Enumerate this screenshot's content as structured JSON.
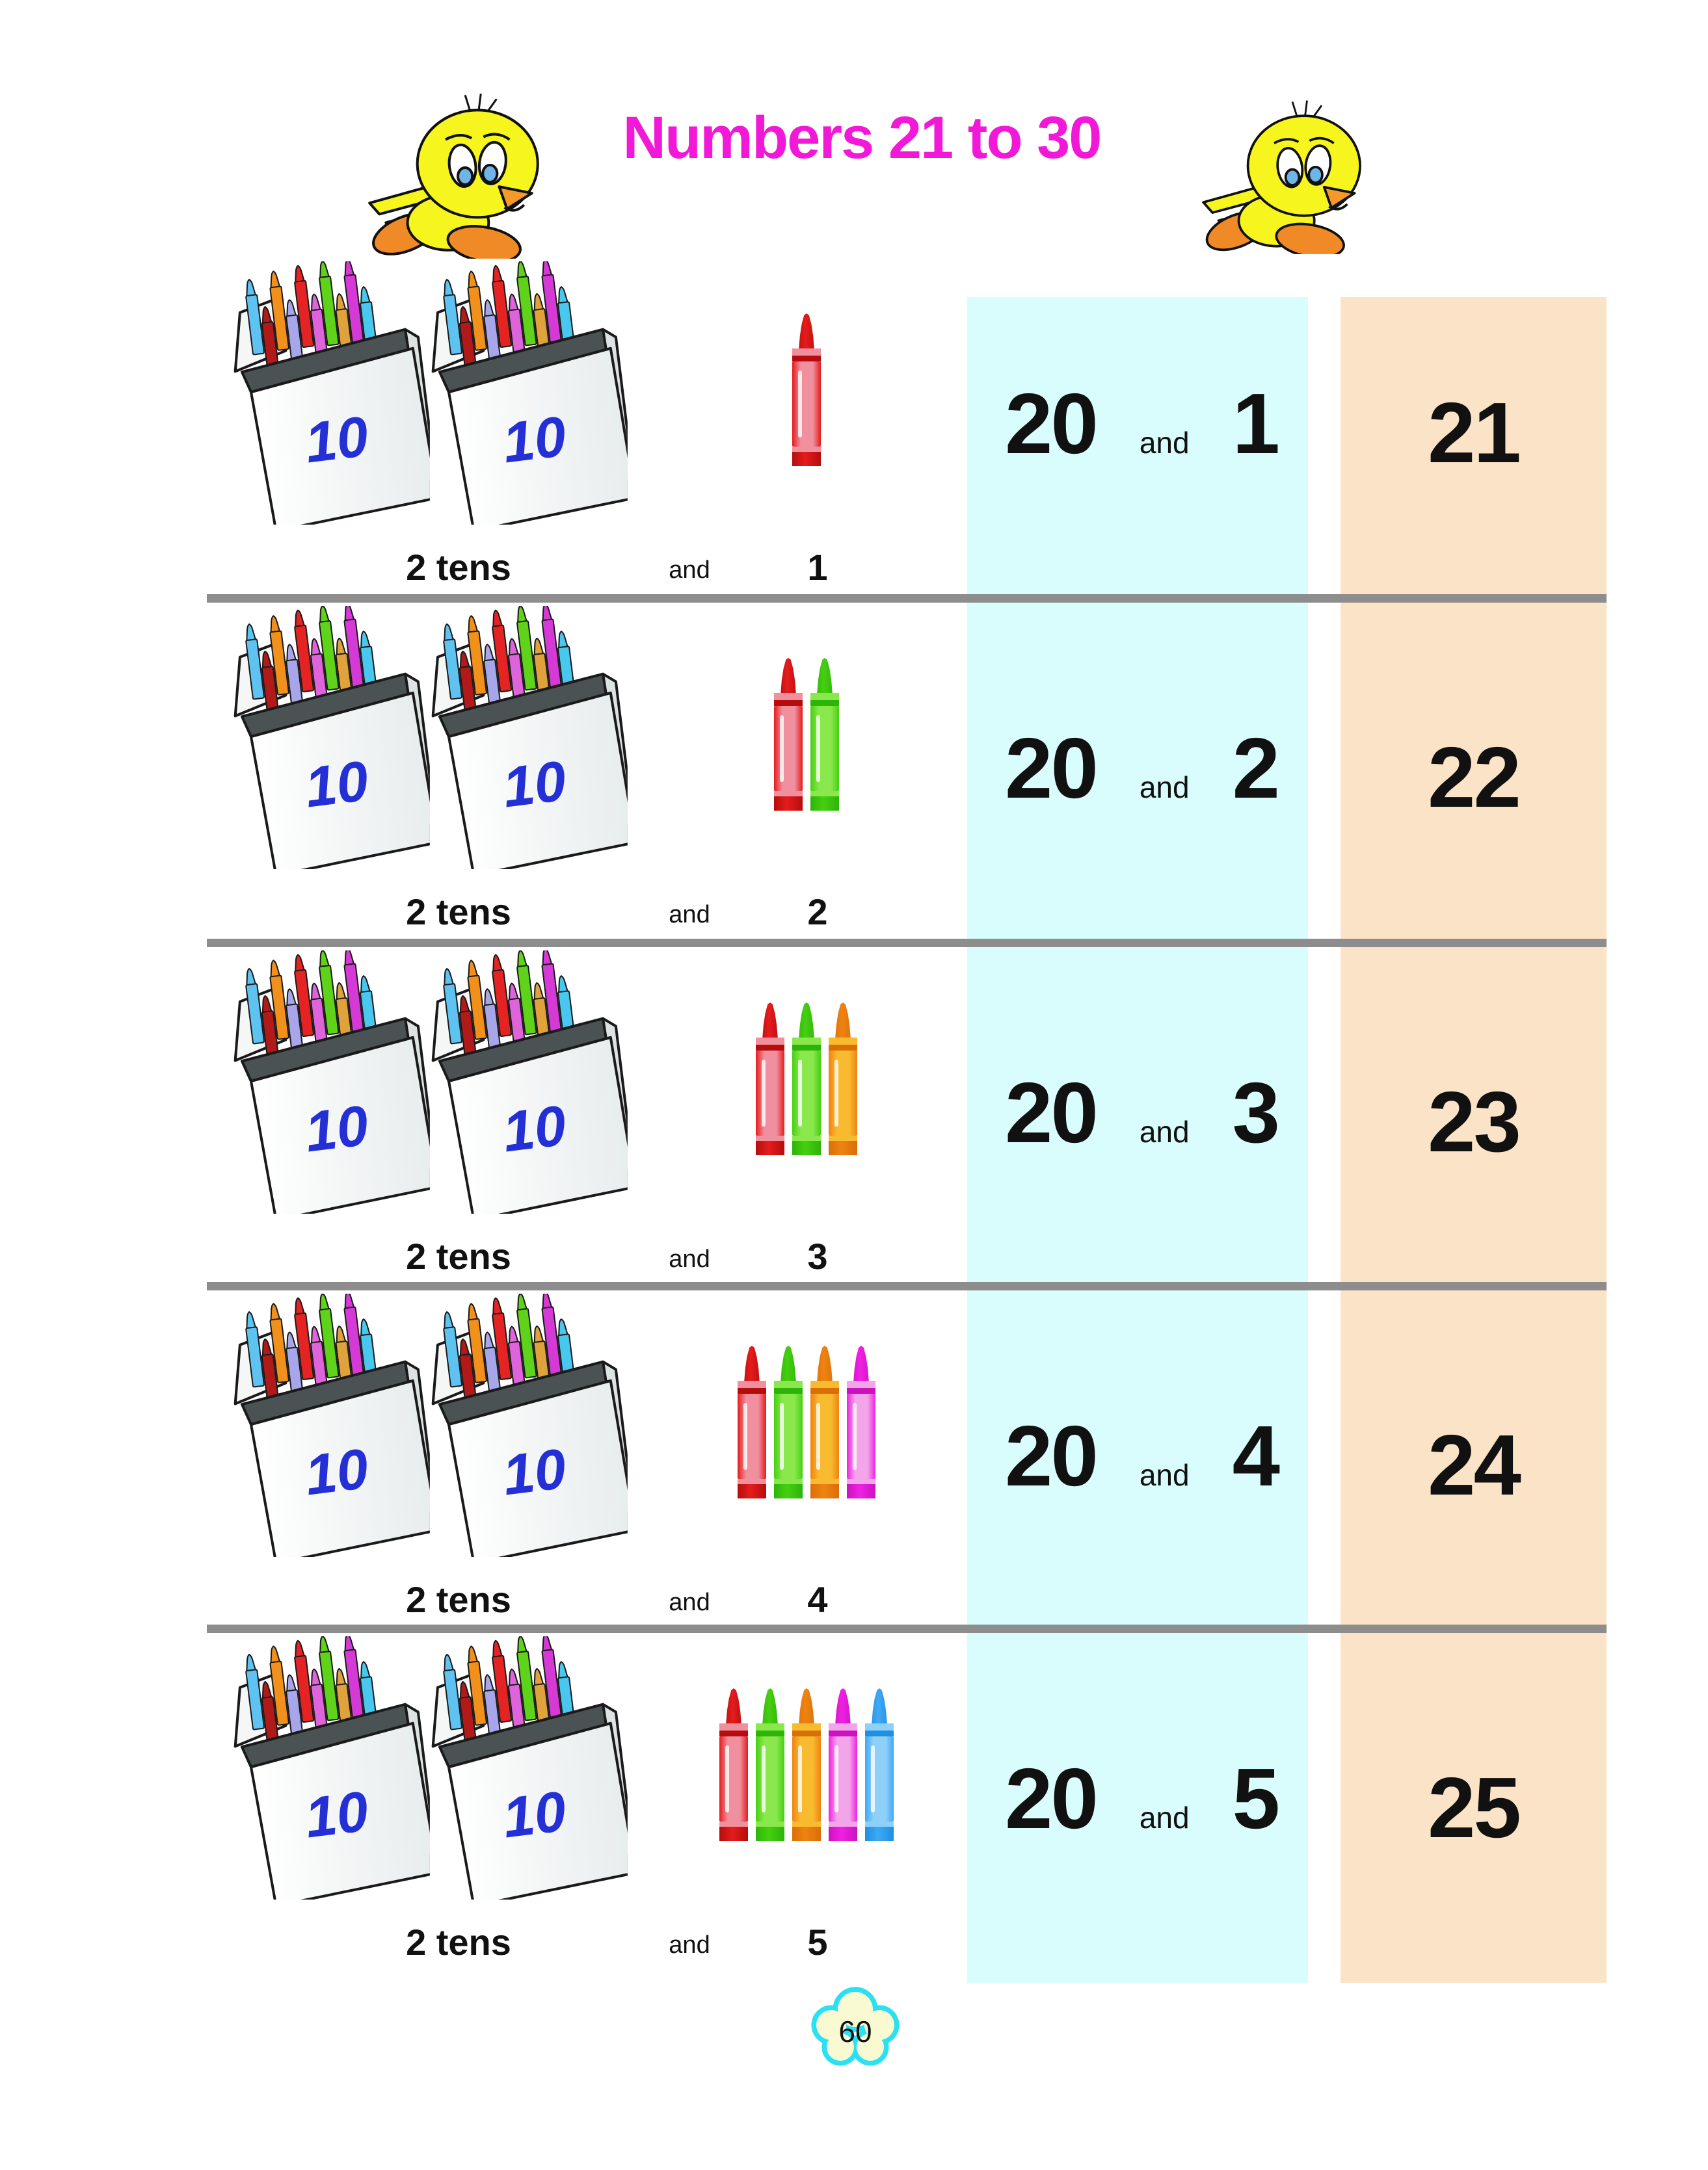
{
  "header": {
    "title": "Numbers 21 to 30",
    "title_color": "#f218d8"
  },
  "icons": {
    "left": "tweety-bird-icon",
    "right": "tweety-bird-icon",
    "footer": "flower-cloud-badge"
  },
  "columns": {
    "sum_column_bg": "#d9fcfd",
    "result_column_bg": "#fbe3c8",
    "separator_color": "#8d8d8d"
  },
  "box": {
    "label_color": "#2430d6"
  },
  "crayon_palette": {
    "red": {
      "tip": "#e51c1c",
      "body": "#f0909f",
      "deep": "#b50d0d"
    },
    "green": {
      "tip": "#46cf10",
      "body": "#8ae84c",
      "deep": "#2db40a"
    },
    "orange": {
      "tip": "#ef8312",
      "body": "#f8bb30",
      "deep": "#d96f06"
    },
    "pink": {
      "tip": "#f021e2",
      "body": "#f2a6e9",
      "deep": "#cc12bf"
    },
    "blue": {
      "tip": "#3fa9f5",
      "body": "#8fd0f8",
      "deep": "#1f8fe0"
    }
  },
  "rows": [
    {
      "box_label": "10",
      "caption": {
        "tens": "2 tens",
        "and": "and",
        "ones": "1"
      },
      "sum": {
        "tens": "20",
        "and": "and",
        "ones": "1"
      },
      "result": "21",
      "crayons": [
        "red"
      ]
    },
    {
      "box_label": "10",
      "caption": {
        "tens": "2 tens",
        "and": "and",
        "ones": "2"
      },
      "sum": {
        "tens": "20",
        "and": "and",
        "ones": "2"
      },
      "result": "22",
      "crayons": [
        "red",
        "green"
      ]
    },
    {
      "box_label": "10",
      "caption": {
        "tens": "2 tens",
        "and": "and",
        "ones": "3"
      },
      "sum": {
        "tens": "20",
        "and": "and",
        "ones": "3"
      },
      "result": "23",
      "crayons": [
        "red",
        "green",
        "orange"
      ]
    },
    {
      "box_label": "10",
      "caption": {
        "tens": "2 tens",
        "and": "and",
        "ones": "4"
      },
      "sum": {
        "tens": "20",
        "and": "and",
        "ones": "4"
      },
      "result": "24",
      "crayons": [
        "red",
        "green",
        "orange",
        "pink"
      ]
    },
    {
      "box_label": "10",
      "caption": {
        "tens": "2 tens",
        "and": "and",
        "ones": "5"
      },
      "sum": {
        "tens": "20",
        "and": "and",
        "ones": "5"
      },
      "result": "25",
      "crayons": [
        "red",
        "green",
        "orange",
        "pink",
        "blue"
      ]
    }
  ],
  "footer": {
    "page_number": "60",
    "badge_fill": "#fafad2",
    "badge_border": "#2ae0f2"
  }
}
